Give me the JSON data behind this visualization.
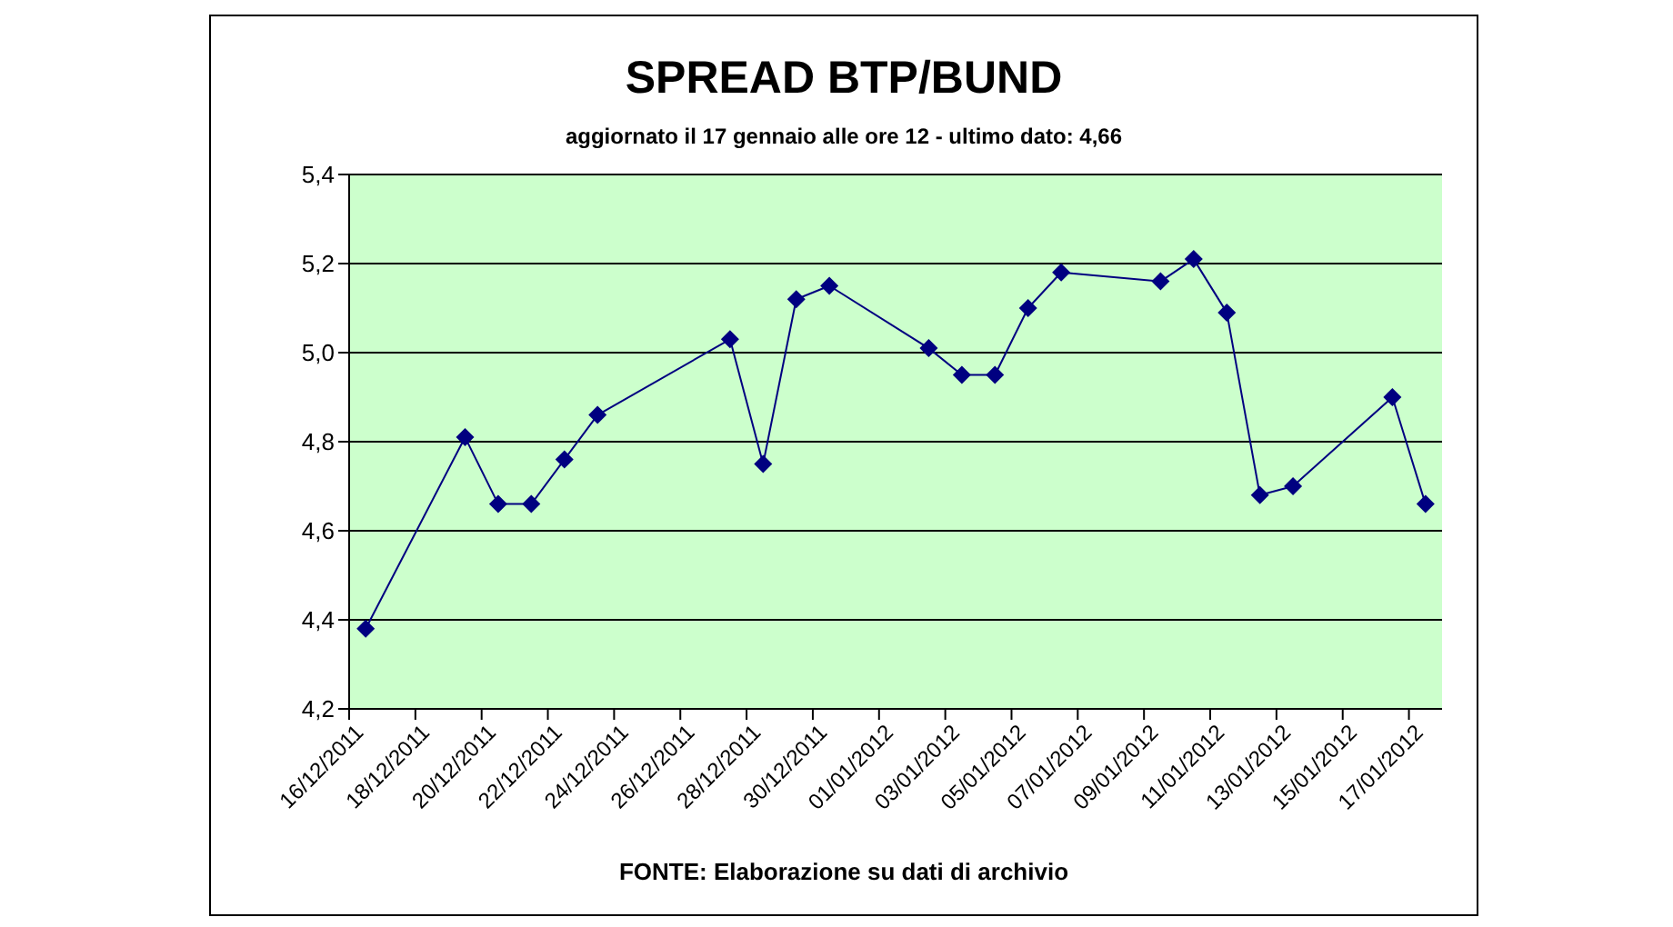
{
  "chart_data": {
    "type": "line",
    "title": "SPREAD BTP/BUND",
    "subtitle": "aggiornato il 17 gennaio alle ore 12 - ultimo dato: 4,66",
    "annotations": [
      "FONTE: Elaborazione su dati di archivio"
    ],
    "x": [
      "2011-12-16T12:00",
      "2011-12-19T12:00",
      "2011-12-20T12:00",
      "2011-12-21T12:00",
      "2011-12-22T12:00",
      "2011-12-23T12:00",
      "2011-12-27T12:00",
      "2011-12-28T12:00",
      "2011-12-29T12:00",
      "2011-12-30T12:00",
      "2012-01-02T12:00",
      "2012-01-03T12:00",
      "2012-01-04T12:00",
      "2012-01-05T12:00",
      "2012-01-06T12:00",
      "2012-01-09T12:00",
      "2012-01-10T12:00",
      "2012-01-11T12:00",
      "2012-01-12T12:00",
      "2012-01-13T12:00",
      "2012-01-16T12:00",
      "2012-01-17T12:00"
    ],
    "series": [
      {
        "color": "#000080",
        "values": [
          4.38,
          4.81,
          4.66,
          4.66,
          4.76,
          4.86,
          5.03,
          4.75,
          5.12,
          5.15,
          5.01,
          4.95,
          4.95,
          5.1,
          5.18,
          5.16,
          5.21,
          5.09,
          4.68,
          4.7,
          4.9,
          4.66
        ]
      }
    ],
    "xlim": [
      "2011-12-16",
      "2012-01-18"
    ],
    "xticks": [
      {
        "value": "2011-12-16",
        "label": "16/12/2011"
      },
      {
        "value": "2011-12-18",
        "label": "18/12/2011"
      },
      {
        "value": "2011-12-20",
        "label": "20/12/2011"
      },
      {
        "value": "2011-12-22",
        "label": "22/12/2011"
      },
      {
        "value": "2011-12-24",
        "label": "24/12/2011"
      },
      {
        "value": "2011-12-26",
        "label": "26/12/2011"
      },
      {
        "value": "2011-12-28",
        "label": "28/12/2011"
      },
      {
        "value": "2011-12-30",
        "label": "30/12/2011"
      },
      {
        "value": "2012-01-01",
        "label": "01/01/2012"
      },
      {
        "value": "2012-01-03",
        "label": "03/01/2012"
      },
      {
        "value": "2012-01-05",
        "label": "05/01/2012"
      },
      {
        "value": "2012-01-07",
        "label": "07/01/2012"
      },
      {
        "value": "2012-01-09",
        "label": "09/01/2012"
      },
      {
        "value": "2012-01-11",
        "label": "11/01/2012"
      },
      {
        "value": "2012-01-13",
        "label": "13/01/2012"
      },
      {
        "value": "2012-01-15",
        "label": "15/01/2012"
      },
      {
        "value": "2012-01-17",
        "label": "17/01/2012"
      }
    ],
    "ylim": [
      4.2,
      5.4
    ],
    "yticks": [
      {
        "value": 4.2,
        "label": "4,2"
      },
      {
        "value": 4.4,
        "label": "4,4"
      },
      {
        "value": 4.6,
        "label": "4,6"
      },
      {
        "value": 4.8,
        "label": "4,8"
      },
      {
        "value": 5.0,
        "label": "5,0"
      },
      {
        "value": 5.2,
        "label": "5,2"
      },
      {
        "value": 5.4,
        "label": "5,4"
      }
    ],
    "grid": "y",
    "legend": false,
    "marker": "diamond",
    "line_style": "solid"
  }
}
